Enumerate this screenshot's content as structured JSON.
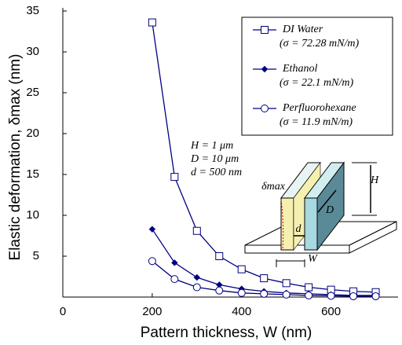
{
  "chart_data": {
    "type": "line",
    "x_label": "Pattern thickness, W (nm)",
    "y_label": "Elastic deformation, δmax (nm)",
    "x": [
      200,
      250,
      300,
      350,
      400,
      450,
      500,
      550,
      600,
      650,
      700
    ],
    "series": [
      {
        "name": "DI Water",
        "note": "(σ = 72.28 mN/m)",
        "color": "#000080",
        "marker": "square",
        "values": [
          33.6,
          14.7,
          8.1,
          5.0,
          3.4,
          2.3,
          1.7,
          1.2,
          0.9,
          0.7,
          0.6
        ]
      },
      {
        "name": "Ethanol",
        "note": "(σ = 22.1 mN/m)",
        "color": "#000080",
        "marker": "diamond",
        "values": [
          8.3,
          4.2,
          2.4,
          1.5,
          1.0,
          0.7,
          0.5,
          0.4,
          0.3,
          0.2,
          0.2
        ]
      },
      {
        "name": "Perfluorohexane",
        "note": "(σ = 11.9 mN/m)",
        "color": "#000080",
        "marker": "circle",
        "values": [
          4.4,
          2.2,
          1.2,
          0.8,
          0.5,
          0.4,
          0.3,
          0.2,
          0.15,
          0.1,
          0.1
        ]
      }
    ],
    "xlim": [
      0,
      750
    ],
    "ylim": [
      0,
      35
    ],
    "xticks": [
      0,
      200,
      400,
      600
    ],
    "yticks": [
      5,
      10,
      15,
      20,
      25,
      30,
      35
    ],
    "annotations": [
      "H = 1 μm",
      "D = 10 μm",
      "d = 500 nm"
    ],
    "inset_labels": [
      "δmax",
      "H",
      "D",
      "d",
      "W"
    ]
  }
}
